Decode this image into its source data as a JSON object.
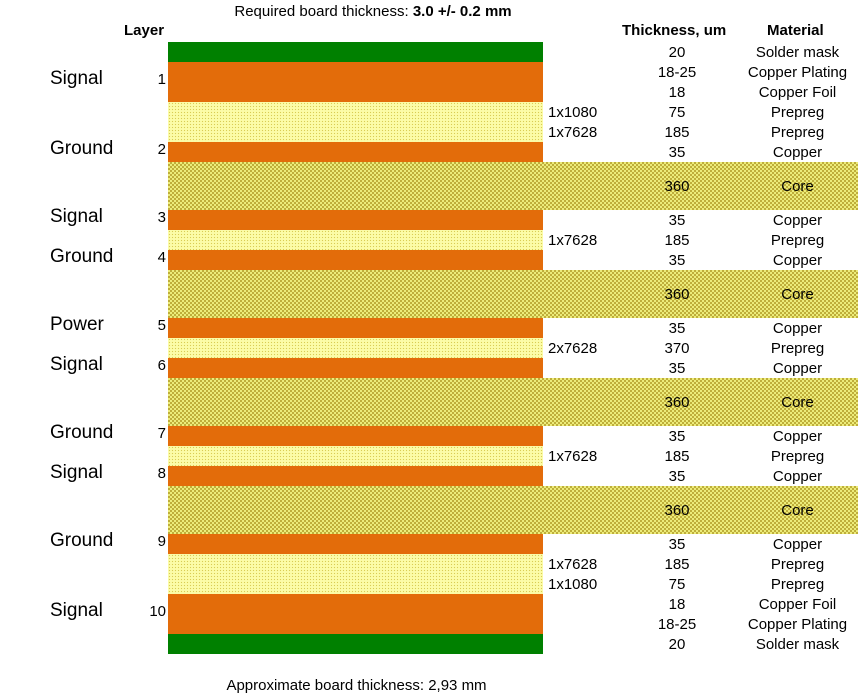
{
  "title": {
    "prefix": "Required board thickness: ",
    "value": "3.0 +/- 0.2 mm"
  },
  "headers": {
    "layer": "Layer",
    "thickness": "Thickness, um",
    "material": "Material"
  },
  "colors": {
    "solder_mask": "#008000",
    "copper": "#e36c0a",
    "prepreg": "#fcfca8",
    "core": "#ecec7a"
  },
  "layers": [
    {
      "type": "Signal",
      "number": "1"
    },
    {
      "type": "Ground",
      "number": "2"
    },
    {
      "type": "Signal",
      "number": "3"
    },
    {
      "type": "Ground",
      "number": "4"
    },
    {
      "type": "Power",
      "number": "5"
    },
    {
      "type": "Signal",
      "number": "6"
    },
    {
      "type": "Ground",
      "number": "7"
    },
    {
      "type": "Signal",
      "number": "8"
    },
    {
      "type": "Ground",
      "number": "9"
    },
    {
      "type": "Signal",
      "number": "10"
    }
  ],
  "stackup": [
    {
      "kind": "mask",
      "thickness": "20",
      "material": "Solder mask"
    },
    {
      "kind": "copper",
      "thickness": "18-25",
      "material": "Copper Plating"
    },
    {
      "kind": "copper",
      "thickness": "18",
      "material": "Copper Foil"
    },
    {
      "kind": "prepreg",
      "glass": "1x1080",
      "thickness": "75",
      "material": "Prepreg"
    },
    {
      "kind": "prepreg",
      "glass": "1x7628",
      "thickness": "185",
      "material": "Prepreg"
    },
    {
      "kind": "copper",
      "thickness": "35",
      "material": "Copper"
    },
    {
      "kind": "core",
      "thickness": "360",
      "material": "Core"
    },
    {
      "kind": "copper",
      "thickness": "35",
      "material": "Copper"
    },
    {
      "kind": "prepreg",
      "glass": "1x7628",
      "thickness": "185",
      "material": "Prepreg"
    },
    {
      "kind": "copper",
      "thickness": "35",
      "material": "Copper"
    },
    {
      "kind": "core",
      "thickness": "360",
      "material": "Core"
    },
    {
      "kind": "copper",
      "thickness": "35",
      "material": "Copper"
    },
    {
      "kind": "prepreg",
      "glass": "2x7628",
      "thickness": "370",
      "material": "Prepreg"
    },
    {
      "kind": "copper",
      "thickness": "35",
      "material": "Copper"
    },
    {
      "kind": "core",
      "thickness": "360",
      "material": "Core"
    },
    {
      "kind": "copper",
      "thickness": "35",
      "material": "Copper"
    },
    {
      "kind": "prepreg",
      "glass": "1x7628",
      "thickness": "185",
      "material": "Prepreg"
    },
    {
      "kind": "copper",
      "thickness": "35",
      "material": "Copper"
    },
    {
      "kind": "core",
      "thickness": "360",
      "material": "Core"
    },
    {
      "kind": "copper",
      "thickness": "35",
      "material": "Copper"
    },
    {
      "kind": "prepreg",
      "glass": "1x7628",
      "thickness": "185",
      "material": "Prepreg"
    },
    {
      "kind": "prepreg",
      "glass": "1x1080",
      "thickness": "75",
      "material": "Prepreg"
    },
    {
      "kind": "copper",
      "thickness": "18",
      "material": "Copper Foil"
    },
    {
      "kind": "copper",
      "thickness": "18-25",
      "material": "Copper Plating"
    },
    {
      "kind": "mask",
      "thickness": "20",
      "material": "Solder mask"
    }
  ],
  "footer": "Approximate board thickness: 2,93 mm"
}
